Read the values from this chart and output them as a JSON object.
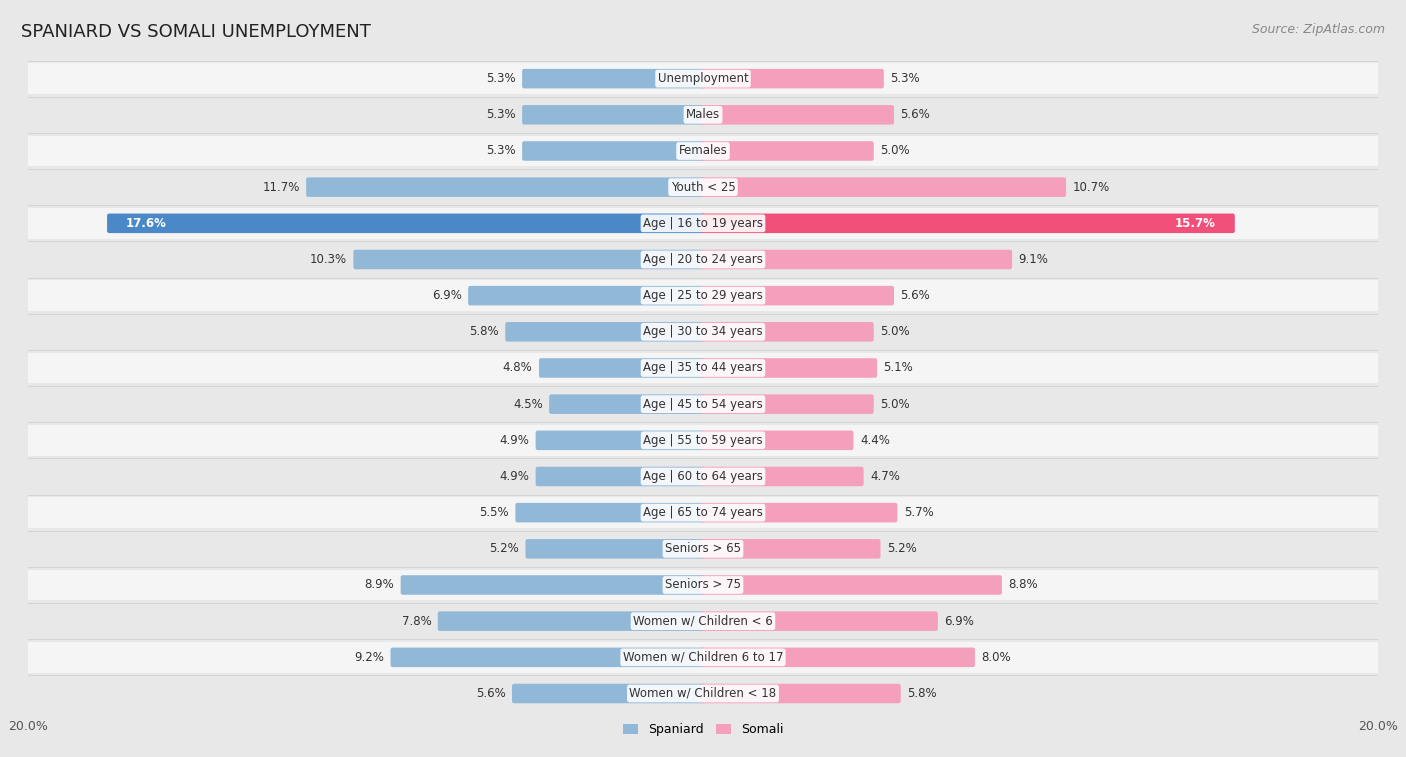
{
  "title": "SPANIARD VS SOMALI UNEMPLOYMENT",
  "source": "Source: ZipAtlas.com",
  "categories": [
    "Unemployment",
    "Males",
    "Females",
    "Youth < 25",
    "Age | 16 to 19 years",
    "Age | 20 to 24 years",
    "Age | 25 to 29 years",
    "Age | 30 to 34 years",
    "Age | 35 to 44 years",
    "Age | 45 to 54 years",
    "Age | 55 to 59 years",
    "Age | 60 to 64 years",
    "Age | 65 to 74 years",
    "Seniors > 65",
    "Seniors > 75",
    "Women w/ Children < 6",
    "Women w/ Children 6 to 17",
    "Women w/ Children < 18"
  ],
  "spaniard": [
    5.3,
    5.3,
    5.3,
    11.7,
    17.6,
    10.3,
    6.9,
    5.8,
    4.8,
    4.5,
    4.9,
    4.9,
    5.5,
    5.2,
    8.9,
    7.8,
    9.2,
    5.6
  ],
  "somali": [
    5.3,
    5.6,
    5.0,
    10.7,
    15.7,
    9.1,
    5.6,
    5.0,
    5.1,
    5.0,
    4.4,
    4.7,
    5.7,
    5.2,
    8.8,
    6.9,
    8.0,
    5.8
  ],
  "spaniard_color": "#92b8d8",
  "spaniard_highlight_color": "#4a88c8",
  "somali_color": "#f4a0bc",
  "somali_highlight_color": "#f0507a",
  "max_val": 20.0,
  "bg_color": "#e8e8e8",
  "row_bg_even": "#f5f5f5",
  "row_bg_odd": "#e8e8e8",
  "legend_spaniard": "Spaniard",
  "legend_somali": "Somali"
}
